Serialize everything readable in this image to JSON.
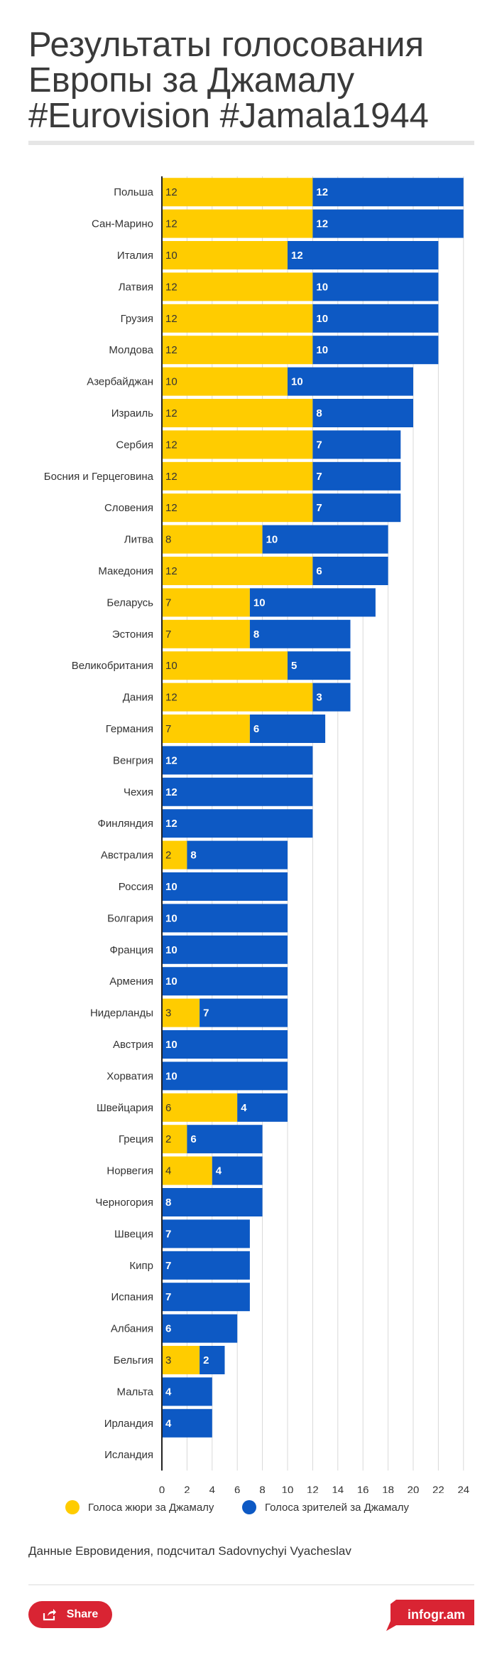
{
  "title": "Результаты голосования Европы за Джамалу #Eurovision #Jamala1944",
  "colors": {
    "jury": "#ffcc00",
    "public": "#0d59c4",
    "title_rule": "#e6e6e6",
    "share": "#d92433"
  },
  "chart_data": {
    "type": "bar",
    "orientation": "horizontal",
    "stacked": true,
    "title": "",
    "xlabel": "",
    "ylabel": "",
    "xlim": [
      0,
      25
    ],
    "xticks": [
      0,
      2,
      4,
      6,
      8,
      10,
      12,
      14,
      16,
      18,
      20,
      22,
      24
    ],
    "grid": true,
    "legend_position": "bottom",
    "categories": [
      "Польша",
      "Сан-Марино",
      "Италия",
      "Латвия",
      "Грузия",
      "Молдова",
      "Азербайджан",
      "Израиль",
      "Сербия",
      "Босния и Герцеговина",
      "Словения",
      "Литва",
      "Македония",
      "Беларусь",
      "Эстония",
      "Великобритания",
      "Дания",
      "Германия",
      "Венгрия",
      "Чехия",
      "Финляндия",
      "Австралия",
      "Россия",
      "Болгария",
      "Франция",
      "Армения",
      "Нидерланды",
      "Австрия",
      "Хорватия",
      "Швейцария",
      "Греция",
      "Норвегия",
      "Черногория",
      "Швеция",
      "Кипр",
      "Испания",
      "Албания",
      "Бельгия",
      "Мальта",
      "Ирландия",
      "Исландия"
    ],
    "series": [
      {
        "name": "Голоса жюри за Джамалу",
        "values": [
          12,
          12,
          10,
          12,
          12,
          12,
          10,
          12,
          12,
          12,
          12,
          8,
          12,
          7,
          7,
          10,
          12,
          7,
          0,
          0,
          0,
          2,
          0,
          0,
          0,
          0,
          3,
          0,
          0,
          6,
          2,
          4,
          0,
          0,
          0,
          0,
          0,
          3,
          0,
          0,
          0
        ]
      },
      {
        "name": "Голоса зрителей за Джамалу",
        "values": [
          12,
          12,
          12,
          10,
          10,
          10,
          10,
          8,
          7,
          7,
          7,
          10,
          6,
          10,
          8,
          5,
          3,
          6,
          12,
          12,
          12,
          8,
          10,
          10,
          10,
          10,
          7,
          10,
          10,
          4,
          6,
          4,
          8,
          7,
          7,
          7,
          6,
          2,
          4,
          4,
          0
        ]
      }
    ]
  },
  "legend": {
    "jury_label": "Голоса жюри за Джамалу",
    "public_label": "Голоса зрителей за Джамалу"
  },
  "source": "Данные Евровидения, подсчитал Sadovnychyi Vyacheslav",
  "footer": {
    "share_label": "Share",
    "brand": "infogr.am"
  }
}
